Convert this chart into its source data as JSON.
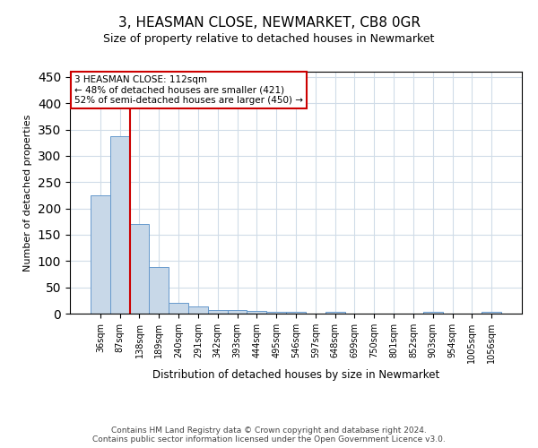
{
  "title": "3, HEASMAN CLOSE, NEWMARKET, CB8 0GR",
  "subtitle": "Size of property relative to detached houses in Newmarket",
  "xlabel": "Distribution of detached houses by size in Newmarket",
  "ylabel": "Number of detached properties",
  "bar_labels": [
    "36sqm",
    "87sqm",
    "138sqm",
    "189sqm",
    "240sqm",
    "291sqm",
    "342sqm",
    "393sqm",
    "444sqm",
    "495sqm",
    "546sqm",
    "597sqm",
    "648sqm",
    "699sqm",
    "750sqm",
    "801sqm",
    "852sqm",
    "903sqm",
    "954sqm",
    "1005sqm",
    "1056sqm"
  ],
  "bar_values": [
    225,
    338,
    170,
    88,
    20,
    14,
    6,
    6,
    5,
    4,
    3,
    0,
    3,
    0,
    0,
    0,
    0,
    3,
    0,
    0,
    3
  ],
  "bar_color": "#c8d8e8",
  "bar_edge_color": "#6699cc",
  "annotation_text_line1": "3 HEASMAN CLOSE: 112sqm",
  "annotation_text_line2": "← 48% of detached houses are smaller (421)",
  "annotation_text_line3": "52% of semi-detached houses are larger (450) →",
  "red_line_color": "#cc0000",
  "annotation_box_color": "#ffffff",
  "annotation_box_edge_color": "#cc0000",
  "ylim": [
    0,
    460
  ],
  "yticks": [
    0,
    50,
    100,
    150,
    200,
    250,
    300,
    350,
    400,
    450
  ],
  "footer_line1": "Contains HM Land Registry data © Crown copyright and database right 2024.",
  "footer_line2": "Contains public sector information licensed under the Open Government Licence v3.0.",
  "bg_color": "#ffffff",
  "grid_color": "#d0dce8",
  "red_line_bar_index": 1.5
}
